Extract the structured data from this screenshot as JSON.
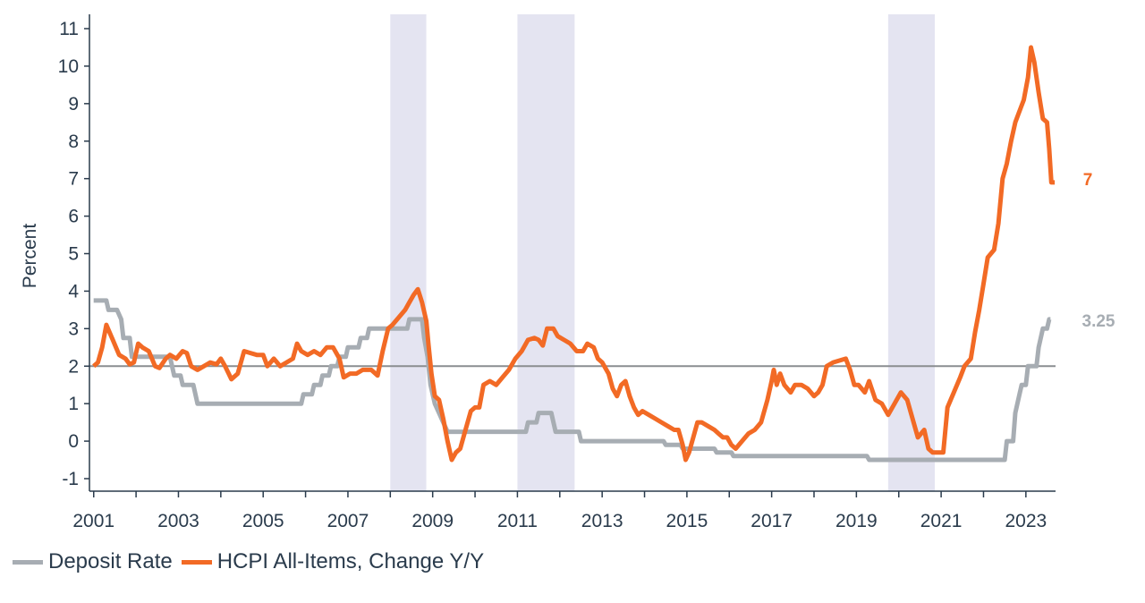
{
  "chart_data": {
    "type": "line",
    "title": "",
    "xlabel": "",
    "ylabel": "Percent",
    "xlim": [
      2000.9,
      2023.7
    ],
    "ylim": [
      -1.4,
      11.4
    ],
    "y_ticks": [
      -1,
      0,
      1,
      2,
      3,
      4,
      5,
      6,
      7,
      8,
      9,
      10,
      11
    ],
    "x_ticks": [
      2001,
      2003,
      2005,
      2007,
      2009,
      2011,
      2013,
      2015,
      2017,
      2019,
      2021,
      2023
    ],
    "x_tick_labels": [
      "2001",
      "2003",
      "2005",
      "2007",
      "2009",
      "2011",
      "2013",
      "2015",
      "2017",
      "2019",
      "2021",
      "2023"
    ],
    "reference_line": {
      "y": 2
    },
    "shaded_periods": [
      [
        2008.0,
        2008.85
      ],
      [
        2011.0,
        2012.35
      ],
      [
        2019.75,
        2020.85
      ]
    ],
    "legend_position": "bottom-left",
    "series": [
      {
        "name": "Deposit Rate",
        "color": "#a7adb3",
        "end_label": "3.25",
        "points": [
          [
            2001.0,
            3.75
          ],
          [
            2001.3,
            3.75
          ],
          [
            2001.35,
            3.5
          ],
          [
            2001.55,
            3.5
          ],
          [
            2001.65,
            3.25
          ],
          [
            2001.7,
            2.75
          ],
          [
            2001.85,
            2.75
          ],
          [
            2001.9,
            2.25
          ],
          [
            2002.8,
            2.25
          ],
          [
            2002.9,
            1.75
          ],
          [
            2003.05,
            1.75
          ],
          [
            2003.1,
            1.5
          ],
          [
            2003.35,
            1.5
          ],
          [
            2003.45,
            1.0
          ],
          [
            2005.9,
            1.0
          ],
          [
            2005.95,
            1.25
          ],
          [
            2006.15,
            1.25
          ],
          [
            2006.2,
            1.5
          ],
          [
            2006.35,
            1.5
          ],
          [
            2006.4,
            1.75
          ],
          [
            2006.55,
            1.75
          ],
          [
            2006.6,
            2.0
          ],
          [
            2006.75,
            2.0
          ],
          [
            2006.8,
            2.25
          ],
          [
            2006.95,
            2.25
          ],
          [
            2007.0,
            2.5
          ],
          [
            2007.25,
            2.5
          ],
          [
            2007.3,
            2.75
          ],
          [
            2007.45,
            2.75
          ],
          [
            2007.5,
            3.0
          ],
          [
            2008.4,
            3.0
          ],
          [
            2008.45,
            3.25
          ],
          [
            2008.75,
            3.25
          ],
          [
            2008.8,
            2.75
          ],
          [
            2008.88,
            2.25
          ],
          [
            2008.95,
            1.5
          ],
          [
            2009.05,
            1.0
          ],
          [
            2009.15,
            0.75
          ],
          [
            2009.25,
            0.5
          ],
          [
            2009.35,
            0.25
          ],
          [
            2011.2,
            0.25
          ],
          [
            2011.25,
            0.5
          ],
          [
            2011.45,
            0.5
          ],
          [
            2011.5,
            0.75
          ],
          [
            2011.8,
            0.75
          ],
          [
            2011.85,
            0.5
          ],
          [
            2011.9,
            0.25
          ],
          [
            2012.45,
            0.25
          ],
          [
            2012.5,
            0.0
          ],
          [
            2014.45,
            0.0
          ],
          [
            2014.5,
            -0.1
          ],
          [
            2014.85,
            -0.1
          ],
          [
            2014.9,
            -0.2
          ],
          [
            2015.65,
            -0.2
          ],
          [
            2015.7,
            -0.3
          ],
          [
            2016.05,
            -0.3
          ],
          [
            2016.1,
            -0.4
          ],
          [
            2019.25,
            -0.4
          ],
          [
            2019.3,
            -0.5
          ],
          [
            2022.5,
            -0.5
          ],
          [
            2022.55,
            0.0
          ],
          [
            2022.7,
            0.0
          ],
          [
            2022.75,
            0.75
          ],
          [
            2022.85,
            1.25
          ],
          [
            2022.9,
            1.5
          ],
          [
            2023.0,
            1.5
          ],
          [
            2023.05,
            2.0
          ],
          [
            2023.25,
            2.0
          ],
          [
            2023.3,
            2.5
          ],
          [
            2023.4,
            3.0
          ],
          [
            2023.5,
            3.0
          ],
          [
            2023.55,
            3.25
          ],
          [
            2023.58,
            3.25
          ]
        ]
      },
      {
        "name": "HCPI All-Items, Change Y/Y",
        "color": "#f26a25",
        "end_label": "7",
        "points": [
          [
            2001.0,
            2.0
          ],
          [
            2001.1,
            2.1
          ],
          [
            2001.2,
            2.5
          ],
          [
            2001.3,
            3.1
          ],
          [
            2001.45,
            2.7
          ],
          [
            2001.6,
            2.3
          ],
          [
            2001.75,
            2.2
          ],
          [
            2001.85,
            2.05
          ],
          [
            2001.95,
            2.1
          ],
          [
            2002.05,
            2.6
          ],
          [
            2002.15,
            2.5
          ],
          [
            2002.3,
            2.4
          ],
          [
            2002.45,
            2.0
          ],
          [
            2002.55,
            1.95
          ],
          [
            2002.7,
            2.2
          ],
          [
            2002.8,
            2.3
          ],
          [
            2002.95,
            2.2
          ],
          [
            2003.1,
            2.4
          ],
          [
            2003.2,
            2.35
          ],
          [
            2003.3,
            2.0
          ],
          [
            2003.45,
            1.9
          ],
          [
            2003.6,
            2.0
          ],
          [
            2003.75,
            2.1
          ],
          [
            2003.9,
            2.05
          ],
          [
            2004.0,
            2.2
          ],
          [
            2004.1,
            2.0
          ],
          [
            2004.25,
            1.65
          ],
          [
            2004.4,
            1.8
          ],
          [
            2004.55,
            2.4
          ],
          [
            2004.7,
            2.35
          ],
          [
            2004.85,
            2.3
          ],
          [
            2005.0,
            2.3
          ],
          [
            2005.1,
            2.0
          ],
          [
            2005.25,
            2.2
          ],
          [
            2005.4,
            2.0
          ],
          [
            2005.55,
            2.1
          ],
          [
            2005.7,
            2.2
          ],
          [
            2005.8,
            2.6
          ],
          [
            2005.9,
            2.4
          ],
          [
            2006.05,
            2.3
          ],
          [
            2006.2,
            2.4
          ],
          [
            2006.35,
            2.3
          ],
          [
            2006.5,
            2.5
          ],
          [
            2006.65,
            2.5
          ],
          [
            2006.8,
            2.2
          ],
          [
            2006.9,
            1.7
          ],
          [
            2007.05,
            1.8
          ],
          [
            2007.2,
            1.8
          ],
          [
            2007.35,
            1.9
          ],
          [
            2007.55,
            1.9
          ],
          [
            2007.7,
            1.75
          ],
          [
            2007.82,
            2.4
          ],
          [
            2007.95,
            3.0
          ],
          [
            2008.05,
            3.1
          ],
          [
            2008.2,
            3.3
          ],
          [
            2008.35,
            3.5
          ],
          [
            2008.45,
            3.7
          ],
          [
            2008.55,
            3.9
          ],
          [
            2008.65,
            4.05
          ],
          [
            2008.75,
            3.7
          ],
          [
            2008.85,
            3.2
          ],
          [
            2008.9,
            2.6
          ],
          [
            2008.97,
            1.8
          ],
          [
            2009.05,
            1.2
          ],
          [
            2009.15,
            1.1
          ],
          [
            2009.25,
            0.6
          ],
          [
            2009.35,
            0.0
          ],
          [
            2009.45,
            -0.5
          ],
          [
            2009.55,
            -0.3
          ],
          [
            2009.65,
            -0.2
          ],
          [
            2009.75,
            0.2
          ],
          [
            2009.9,
            0.8
          ],
          [
            2010.0,
            0.9
          ],
          [
            2010.1,
            0.9
          ],
          [
            2010.2,
            1.5
          ],
          [
            2010.35,
            1.6
          ],
          [
            2010.5,
            1.5
          ],
          [
            2010.65,
            1.7
          ],
          [
            2010.8,
            1.9
          ],
          [
            2010.95,
            2.2
          ],
          [
            2011.1,
            2.4
          ],
          [
            2011.25,
            2.7
          ],
          [
            2011.4,
            2.75
          ],
          [
            2011.5,
            2.7
          ],
          [
            2011.6,
            2.55
          ],
          [
            2011.7,
            3.0
          ],
          [
            2011.85,
            3.0
          ],
          [
            2011.95,
            2.8
          ],
          [
            2012.1,
            2.7
          ],
          [
            2012.25,
            2.6
          ],
          [
            2012.4,
            2.4
          ],
          [
            2012.55,
            2.4
          ],
          [
            2012.65,
            2.6
          ],
          [
            2012.8,
            2.5
          ],
          [
            2012.9,
            2.2
          ],
          [
            2013.0,
            2.1
          ],
          [
            2013.15,
            1.8
          ],
          [
            2013.25,
            1.4
          ],
          [
            2013.35,
            1.2
          ],
          [
            2013.45,
            1.5
          ],
          [
            2013.55,
            1.6
          ],
          [
            2013.65,
            1.2
          ],
          [
            2013.75,
            0.9
          ],
          [
            2013.85,
            0.7
          ],
          [
            2013.95,
            0.8
          ],
          [
            2014.1,
            0.7
          ],
          [
            2014.25,
            0.6
          ],
          [
            2014.4,
            0.5
          ],
          [
            2014.55,
            0.4
          ],
          [
            2014.7,
            0.3
          ],
          [
            2014.8,
            0.3
          ],
          [
            2014.9,
            -0.1
          ],
          [
            2014.97,
            -0.5
          ],
          [
            2015.05,
            -0.3
          ],
          [
            2015.15,
            0.1
          ],
          [
            2015.25,
            0.5
          ],
          [
            2015.35,
            0.5
          ],
          [
            2015.5,
            0.4
          ],
          [
            2015.65,
            0.3
          ],
          [
            2015.75,
            0.2
          ],
          [
            2015.85,
            0.1
          ],
          [
            2015.95,
            0.1
          ],
          [
            2016.05,
            -0.1
          ],
          [
            2016.15,
            -0.2
          ],
          [
            2016.3,
            0.0
          ],
          [
            2016.45,
            0.2
          ],
          [
            2016.6,
            0.3
          ],
          [
            2016.75,
            0.5
          ],
          [
            2016.9,
            1.1
          ],
          [
            2017.0,
            1.6
          ],
          [
            2017.05,
            1.9
          ],
          [
            2017.12,
            1.5
          ],
          [
            2017.2,
            1.8
          ],
          [
            2017.3,
            1.5
          ],
          [
            2017.45,
            1.3
          ],
          [
            2017.55,
            1.5
          ],
          [
            2017.7,
            1.5
          ],
          [
            2017.85,
            1.4
          ],
          [
            2018.0,
            1.2
          ],
          [
            2018.1,
            1.3
          ],
          [
            2018.2,
            1.5
          ],
          [
            2018.3,
            2.0
          ],
          [
            2018.45,
            2.1
          ],
          [
            2018.6,
            2.15
          ],
          [
            2018.75,
            2.2
          ],
          [
            2018.85,
            1.9
          ],
          [
            2018.95,
            1.5
          ],
          [
            2019.05,
            1.5
          ],
          [
            2019.2,
            1.3
          ],
          [
            2019.3,
            1.6
          ],
          [
            2019.45,
            1.1
          ],
          [
            2019.6,
            1.0
          ],
          [
            2019.75,
            0.7
          ],
          [
            2019.9,
            1.0
          ],
          [
            2020.05,
            1.3
          ],
          [
            2020.2,
            1.1
          ],
          [
            2020.35,
            0.5
          ],
          [
            2020.45,
            0.1
          ],
          [
            2020.6,
            0.3
          ],
          [
            2020.7,
            -0.2
          ],
          [
            2020.8,
            -0.3
          ],
          [
            2021.05,
            -0.3
          ],
          [
            2021.15,
            0.9
          ],
          [
            2021.3,
            1.3
          ],
          [
            2021.45,
            1.7
          ],
          [
            2021.55,
            2.0
          ],
          [
            2021.7,
            2.2
          ],
          [
            2021.8,
            2.9
          ],
          [
            2021.9,
            3.5
          ],
          [
            2022.0,
            4.2
          ],
          [
            2022.1,
            4.9
          ],
          [
            2022.25,
            5.1
          ],
          [
            2022.35,
            5.8
          ],
          [
            2022.45,
            7.0
          ],
          [
            2022.55,
            7.4
          ],
          [
            2022.65,
            8.0
          ],
          [
            2022.75,
            8.5
          ],
          [
            2022.85,
            8.8
          ],
          [
            2022.95,
            9.1
          ],
          [
            2023.05,
            9.7
          ],
          [
            2023.12,
            10.5
          ],
          [
            2023.2,
            10.1
          ],
          [
            2023.3,
            9.3
          ],
          [
            2023.4,
            8.6
          ],
          [
            2023.5,
            8.5
          ],
          [
            2023.55,
            7.8
          ],
          [
            2023.6,
            6.9
          ],
          [
            2023.68,
            6.9
          ]
        ]
      }
    ]
  }
}
